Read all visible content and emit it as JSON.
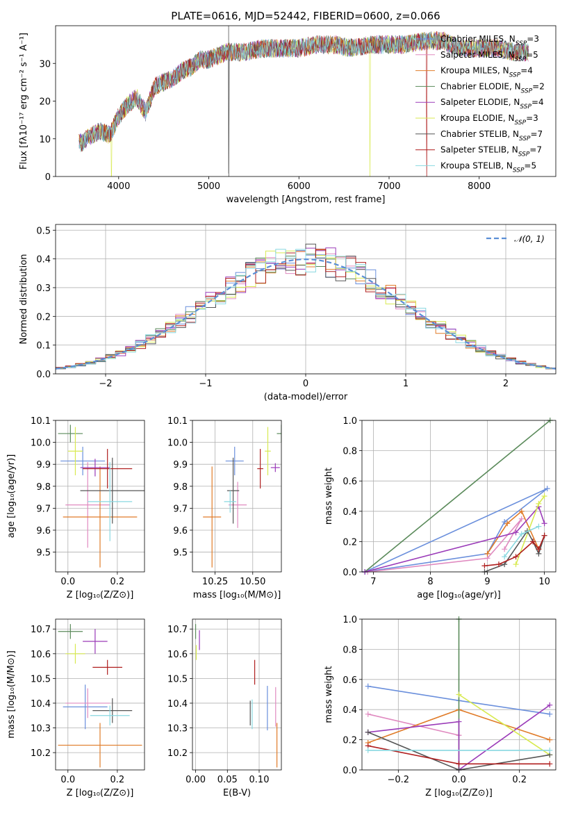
{
  "colors": [
    "#6a8fdc",
    "#e08ac0",
    "#e07b28",
    "#5a8a5a",
    "#9a3ab8",
    "#d8ea50",
    "#555555",
    "#b01f1f",
    "#88d8e0"
  ],
  "chart_data": [
    {
      "id": "spectrum",
      "type": "line",
      "title": "PLATE=0616, MJD=52442, FIBERID=0600, z=0.066",
      "xlabel": "wavelength [Angstrom, rest frame]",
      "ylabel": "Flux [fλ10⁻¹⁷ erg cm⁻² s⁻¹ A⁻¹]",
      "xlim": [
        3300,
        8850
      ],
      "ylim": [
        0,
        40
      ],
      "xticks": [
        "4000",
        "5000",
        "6000",
        "7000",
        "8000"
      ],
      "yticks": [
        "0",
        "10",
        "20",
        "30"
      ],
      "legend_position": "right",
      "legend": [
        "Chabrier MILES, N_SSP=3",
        "Salpeter MILES, N_SSP=5",
        "Kroupa MILES, N_SSP=4",
        "Chabrier ELODIE, N_SSP=2",
        "Salpeter ELODIE, N_SSP=4",
        "Kroupa ELODIE, N_SSP=3",
        "Chabrier STELIB, N_SSP=7",
        "Salpeter STELIB, N_SSP=7",
        "Kroupa STELIB, N_SSP=5"
      ],
      "x": [
        3600,
        3700,
        3800,
        3900,
        4000,
        4100,
        4200,
        4300,
        4400,
        4500,
        4600,
        4700,
        4800,
        4900,
        5000,
        5200,
        5400,
        5600,
        5800,
        6000,
        6200,
        6400,
        6600,
        6800,
        7000,
        7200,
        7400,
        7600,
        7800,
        8000,
        8200,
        8400,
        8500
      ],
      "y": [
        9,
        11,
        12,
        11,
        16,
        19,
        21,
        17,
        24,
        25,
        26,
        28,
        29,
        31,
        31,
        33,
        33,
        34,
        34,
        34,
        35,
        35,
        34,
        35,
        35,
        35,
        36,
        36,
        34,
        34,
        34,
        33,
        33
      ]
    },
    {
      "id": "residuals",
      "type": "line",
      "xlabel": "(data-model)/error",
      "ylabel": "Normed distribution",
      "xlim": [
        -2.5,
        2.5
      ],
      "ylim": [
        0,
        0.52
      ],
      "xticks": [
        "−2",
        "−1",
        "0",
        "1",
        "2"
      ],
      "yticks": [
        "0.0",
        "0.1",
        "0.2",
        "0.3",
        "0.4",
        "0.5"
      ],
      "grid": true,
      "legend": [
        "𝒩(0, 1)"
      ],
      "legend_position": "top-right",
      "bin_width": 0.1
    },
    {
      "id": "age-vs-Z",
      "type": "scatter",
      "xlabel": "Z [log₁₀(Z/Z⊙)]",
      "ylabel": "age  [log₁₀(age/yr)]",
      "xlim": [
        -0.05,
        0.31
      ],
      "ylim": [
        9.41,
        10.1
      ],
      "xticks": [
        "0.0",
        "0.2"
      ],
      "yticks": [
        "9.5",
        "9.6",
        "9.7",
        "9.8",
        "9.9",
        "10.0",
        "10.1"
      ],
      "grid": true,
      "points": [
        {
          "x": 0.06,
          "y": 9.915,
          "xerr": 0.09,
          "yerr": 0.065
        },
        {
          "x": 0.08,
          "y": 9.715,
          "xerr": 0.09,
          "yerr": 0.195
        },
        {
          "x": 0.13,
          "y": 9.66,
          "xerr": 0.15,
          "yerr": 0.23
        },
        {
          "x": 0.01,
          "y": 10.04,
          "xerr": 0.05,
          "yerr": 0.04
        },
        {
          "x": 0.11,
          "y": 9.885,
          "xerr": 0.06,
          "yerr": 0.04
        },
        {
          "x": 0.03,
          "y": 9.96,
          "xerr": 0.03,
          "yerr": 0.11
        },
        {
          "x": 0.18,
          "y": 9.78,
          "xerr": 0.13,
          "yerr": 0.15
        },
        {
          "x": 0.16,
          "y": 9.88,
          "xerr": 0.1,
          "yerr": 0.09
        },
        {
          "x": 0.17,
          "y": 9.73,
          "xerr": 0.09,
          "yerr": 0.18
        }
      ]
    },
    {
      "id": "age-vs-mass",
      "type": "scatter",
      "xlabel": "mass [log₁₀(M/M⊙)]",
      "xlim": [
        10.1,
        10.69
      ],
      "ylim": [
        9.41,
        10.1
      ],
      "xticks": [
        "10.25",
        "10.50"
      ],
      "yticks": [
        "9.5",
        "9.6",
        "9.7",
        "9.8",
        "9.9",
        "10.0",
        "10.1"
      ],
      "grid": true,
      "points": [
        {
          "x": 10.38,
          "y": 9.915,
          "xerr": 0.06,
          "yerr": 0.065
        },
        {
          "x": 10.4,
          "y": 9.715,
          "xerr": 0.06,
          "yerr": 0.105
        },
        {
          "x": 10.23,
          "y": 9.66,
          "xerr": 0.06,
          "yerr": 0.23
        },
        {
          "x": 10.69,
          "y": 10.04,
          "xerr": 0.03,
          "yerr": 0.04
        },
        {
          "x": 10.65,
          "y": 9.885,
          "xerr": 0.03,
          "yerr": 0.02
        },
        {
          "x": 10.6,
          "y": 9.96,
          "xerr": 0.02,
          "yerr": 0.11
        },
        {
          "x": 10.37,
          "y": 9.78,
          "xerr": 0.04,
          "yerr": 0.15
        },
        {
          "x": 10.55,
          "y": 9.88,
          "xerr": 0.02,
          "yerr": 0.09
        },
        {
          "x": 10.35,
          "y": 9.73,
          "xerr": 0.04,
          "yerr": 0.05
        }
      ]
    },
    {
      "id": "weight-vs-age",
      "type": "line",
      "xlabel": "age  [log₁₀(age/yr)]",
      "ylabel": "mass weight",
      "xlim": [
        6.8,
        10.2
      ],
      "ylim": [
        0,
        1
      ],
      "xticks": [
        "7",
        "8",
        "9",
        "10"
      ],
      "yticks": [
        "0.0",
        "0.2",
        "0.4",
        "0.6",
        "0.8",
        "1.0"
      ],
      "grid": true,
      "series": [
        {
          "x": [
            6.85,
            10.05,
            9.3,
            9.0,
            6.85
          ],
          "y": [
            0,
            0.55,
            0.33,
            0.12,
            0
          ]
        },
        {
          "x": [
            6.9,
            9.0,
            9.6,
            9.3
          ],
          "y": [
            0,
            0.09,
            0.35,
            0.15
          ]
        },
        {
          "x": [
            9.0,
            9.35,
            9.6,
            9.9
          ],
          "y": [
            0.12,
            0.32,
            0.4,
            0.15
          ]
        },
        {
          "x": [
            6.85,
            10.1
          ],
          "y": [
            0,
            1.0
          ]
        },
        {
          "x": [
            6.85,
            9.5,
            9.9,
            10.0
          ],
          "y": [
            0,
            0.26,
            0.43,
            0.32
          ]
        },
        {
          "x": [
            9.5,
            9.9,
            10.0
          ],
          "y": [
            0.05,
            0.45,
            0.5
          ]
        },
        {
          "x": [
            8.95,
            9.3,
            9.7,
            9.8,
            9.9,
            10.0
          ],
          "y": [
            0,
            0.05,
            0.27,
            0.2,
            0.12,
            0.24
          ]
        },
        {
          "x": [
            8.95,
            9.2,
            9.5,
            9.8,
            9.9,
            10.0
          ],
          "y": [
            0.04,
            0.05,
            0.1,
            0.2,
            0.15,
            0.24
          ]
        },
        {
          "x": [
            9.3,
            9.6,
            9.9
          ],
          "y": [
            0.1,
            0.25,
            0.3
          ]
        }
      ]
    },
    {
      "id": "mass-vs-Z",
      "type": "scatter",
      "xlabel": "Z [log₁₀(Z/Z⊙)]",
      "ylabel": "mass [log₁₀(M/M⊙)]",
      "xlim": [
        -0.05,
        0.31
      ],
      "ylim": [
        10.13,
        10.74
      ],
      "xticks": [
        "0.0",
        "0.2"
      ],
      "yticks": [
        "10.2",
        "10.3",
        "10.4",
        "10.5",
        "10.6",
        "10.7"
      ],
      "grid": true,
      "points": [
        {
          "x": 0.07,
          "y": 10.385,
          "xerr": 0.09,
          "yerr": 0.09
        },
        {
          "x": 0.08,
          "y": 10.4,
          "xerr": 0.09,
          "yerr": 0.06
        },
        {
          "x": 0.13,
          "y": 10.23,
          "xerr": 0.17,
          "yerr": 0.09
        },
        {
          "x": 0.01,
          "y": 10.69,
          "xerr": 0.05,
          "yerr": 0.03
        },
        {
          "x": 0.11,
          "y": 10.65,
          "xerr": 0.05,
          "yerr": 0.05
        },
        {
          "x": 0.03,
          "y": 10.6,
          "xerr": 0.04,
          "yerr": 0.04
        },
        {
          "x": 0.18,
          "y": 10.37,
          "xerr": 0.08,
          "yerr": 0.05
        },
        {
          "x": 0.16,
          "y": 10.545,
          "xerr": 0.06,
          "yerr": 0.03
        },
        {
          "x": 0.17,
          "y": 10.35,
          "xerr": 0.08,
          "yerr": 0.04
        }
      ]
    },
    {
      "id": "mass-vs-EBV",
      "type": "scatter",
      "xlabel": "E(B-V)",
      "xlim": [
        -0.005,
        0.135
      ],
      "ylim": [
        10.13,
        10.74
      ],
      "xticks": [
        "0.00",
        "0.05",
        "0.10"
      ],
      "yticks": [
        "10.2",
        "10.3",
        "10.4",
        "10.5",
        "10.6",
        "10.7"
      ],
      "grid": true,
      "points": [
        {
          "x": 0.113,
          "y": 10.38,
          "yerr": 0.09
        },
        {
          "x": 0.126,
          "y": 10.385,
          "yerr": 0.08
        },
        {
          "x": 0.128,
          "y": 10.23,
          "yerr": 0.09
        },
        {
          "x": 0.0,
          "y": 10.69,
          "yerr": 0.03
        },
        {
          "x": 0.006,
          "y": 10.655,
          "yerr": 0.04
        },
        {
          "x": 0.001,
          "y": 10.605,
          "yerr": 0.03
        },
        {
          "x": 0.086,
          "y": 10.36,
          "yerr": 0.05
        },
        {
          "x": 0.093,
          "y": 10.525,
          "yerr": 0.05
        },
        {
          "x": 0.089,
          "y": 10.355,
          "yerr": 0.06
        }
      ]
    },
    {
      "id": "weight-vs-Z",
      "type": "line",
      "xlabel": "Z [log₁₀(Z/Z⊙)]",
      "ylabel": "mass weight",
      "xlim": [
        -0.32,
        0.32
      ],
      "ylim": [
        0,
        1
      ],
      "xticks": [
        "−0.2",
        "0.0",
        "0.2"
      ],
      "yticks": [
        "0.0",
        "0.2",
        "0.4",
        "0.6",
        "0.8",
        "1.0"
      ],
      "grid": true,
      "series": [
        {
          "x": [
            -0.3,
            0.0,
            0.3
          ],
          "y": [
            0.555,
            0.46,
            0.37
          ]
        },
        {
          "x": [
            -0.3,
            0.0,
            0.0
          ],
          "y": [
            0.37,
            0.23,
            0.23
          ]
        },
        {
          "x": [
            -0.3,
            0.0,
            0.3
          ],
          "y": [
            0.18,
            0.4,
            0.2
          ]
        },
        {
          "x": [
            0.0,
            0.0
          ],
          "y": [
            0.0,
            1.0
          ]
        },
        {
          "x": [
            -0.3,
            0.0,
            0.0,
            0.3
          ],
          "y": [
            0.25,
            0.32,
            0.0,
            0.43
          ]
        },
        {
          "x": [
            0.0,
            0.3
          ],
          "y": [
            0.5,
            0.1
          ]
        },
        {
          "x": [
            -0.3,
            0.0,
            0.3
          ],
          "y": [
            0.25,
            0.0,
            0.1
          ]
        },
        {
          "x": [
            -0.3,
            0.0,
            0.3
          ],
          "y": [
            0.16,
            0.04,
            0.04
          ]
        },
        {
          "x": [
            -0.3,
            0.3
          ],
          "y": [
            0.13,
            0.13
          ]
        }
      ]
    }
  ]
}
